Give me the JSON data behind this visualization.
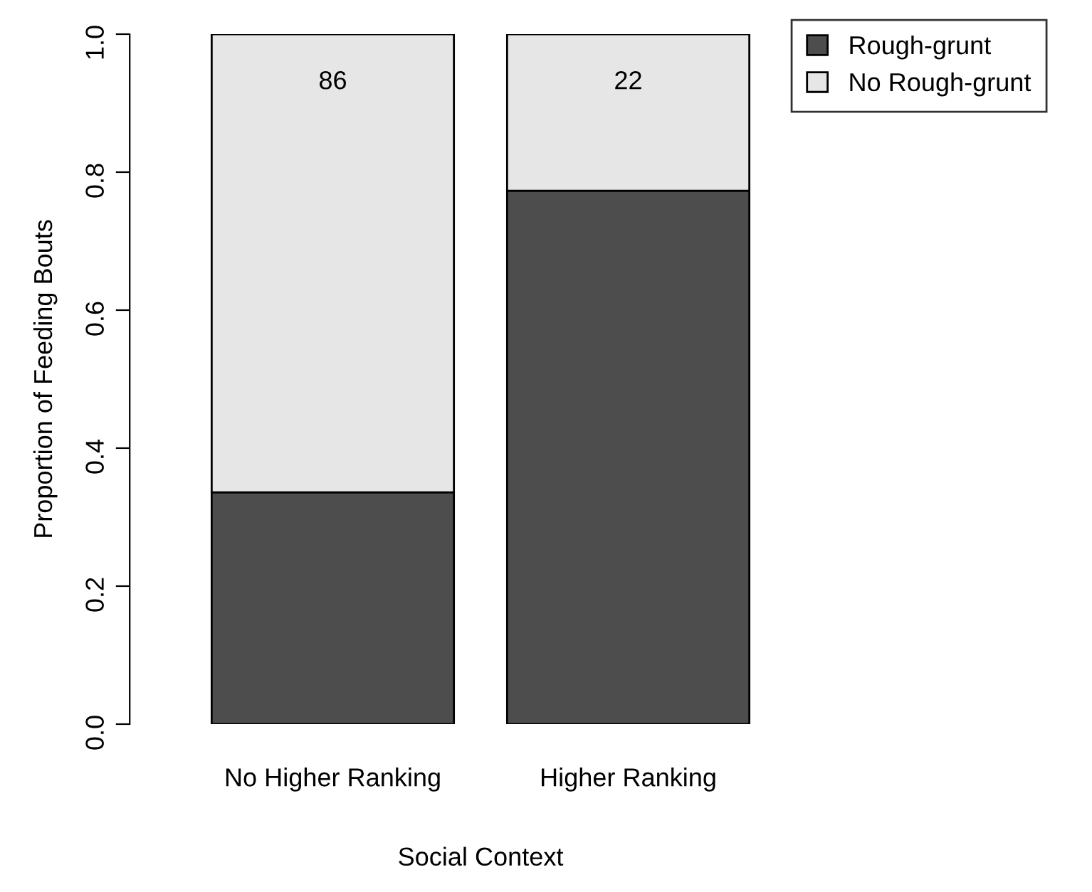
{
  "chart_data": {
    "type": "bar",
    "stacked": true,
    "xlabel": "Social Context",
    "ylabel": "Proportion of Feeding Bouts",
    "categories": [
      "No Higher Ranking",
      "Higher Ranking"
    ],
    "series": [
      {
        "name": "Rough-grunt",
        "color": "#4d4d4d",
        "values": [
          0.336,
          0.773
        ]
      },
      {
        "name": "No Rough-grunt",
        "color": "#e6e6e6",
        "values": [
          0.664,
          0.227
        ]
      }
    ],
    "ylim": [
      0,
      1
    ],
    "yticks": [
      {
        "value": 0,
        "label": "0.0"
      },
      0.2,
      0.4,
      0.6,
      0.8,
      {
        "value": 1,
        "label": "1.0"
      }
    ],
    "annotations": [
      "86",
      "22"
    ],
    "legend": "top right",
    "grid": false
  }
}
